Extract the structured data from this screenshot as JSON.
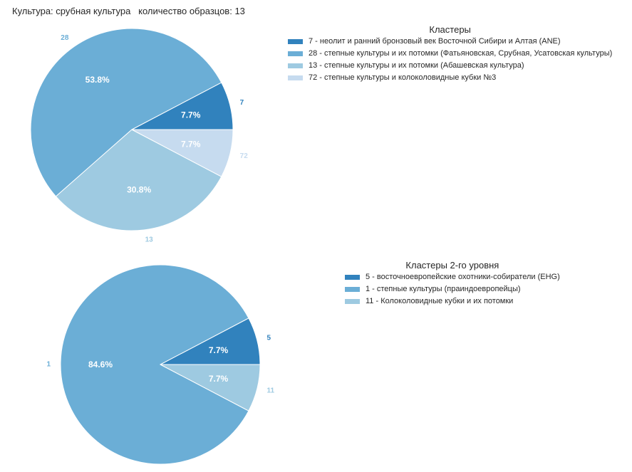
{
  "header": {
    "title": "Культура: срубная культура   количество образцов: 13"
  },
  "colors": {
    "background": "#ffffff",
    "text": "#262626",
    "pct_text": "#ffffff",
    "slice_edge": "#ffffff"
  },
  "chart_data": [
    {
      "type": "pie",
      "legend_title": "Кластеры",
      "legend_position": "right",
      "slices": [
        {
          "label": "7",
          "value": 7.7,
          "pct_label": "7.7%",
          "legend": "7 - неолит и ранний бронзовый век Восточной Сибири и Алтая (ANE)",
          "color": "#3182bd"
        },
        {
          "label": "28",
          "value": 53.8,
          "pct_label": "53.8%",
          "legend": "28 - степные культуры и их потомки (Фатьяновская, Срубная, Усатовская культуры)",
          "color": "#6baed6"
        },
        {
          "label": "13",
          "value": 30.8,
          "pct_label": "30.8%",
          "legend": "13 - степные культуры и их потомки (Абашевская культура)",
          "color": "#9ecae1"
        },
        {
          "label": "72",
          "value": 7.7,
          "pct_label": "7.7%",
          "legend": "72 - степные культуры и колоколовидные кубки №3",
          "color": "#c6dbef"
        }
      ]
    },
    {
      "type": "pie",
      "legend_title": "Кластеры 2-го уровня",
      "legend_position": "right",
      "slices": [
        {
          "label": "5",
          "value": 7.7,
          "pct_label": "7.7%",
          "legend": "5 - восточноевропейские охотники-собиратели (EHG)",
          "color": "#3182bd"
        },
        {
          "label": "1",
          "value": 84.6,
          "pct_label": "84.6%",
          "legend": "1 - степные культуры (праиндоевропейцы)",
          "color": "#6baed6"
        },
        {
          "label": "11",
          "value": 7.7,
          "pct_label": "7.7%",
          "legend": "11 - Колоколовидные кубки и их потомки",
          "color": "#9ecae1"
        }
      ]
    }
  ]
}
